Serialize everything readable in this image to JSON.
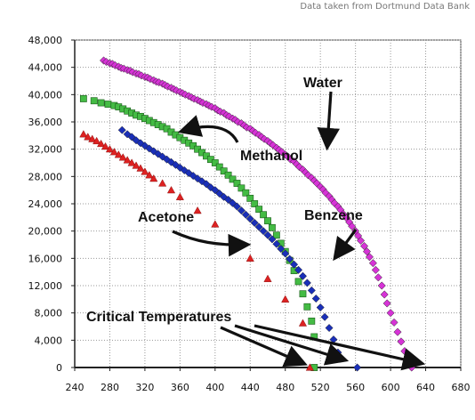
{
  "source_note": "Data taken from Dortmund Data Bank",
  "chart_data": {
    "type": "scatter",
    "title": "",
    "xlabel": "",
    "ylabel": "",
    "xlim": [
      240,
      680
    ],
    "ylim": [
      0,
      48000
    ],
    "x_ticks": [
      240,
      280,
      320,
      360,
      400,
      440,
      480,
      520,
      560,
      600,
      640,
      680
    ],
    "x_tick_labels": [
      "240",
      "280",
      "320",
      "360",
      "400",
      "440",
      "480",
      "520",
      "560",
      "600",
      "640",
      "680"
    ],
    "y_ticks": [
      0,
      4000,
      8000,
      12000,
      16000,
      20000,
      24000,
      28000,
      32000,
      36000,
      40000,
      44000,
      48000
    ],
    "y_tick_labels": [
      "0",
      "4,000",
      "8,000",
      "12,000",
      "16,000",
      "20,000",
      "24,000",
      "28,000",
      "32,000",
      "36,000",
      "40,000",
      "44,000",
      "48,000"
    ],
    "grid": true,
    "legend": "none",
    "series": [
      {
        "name": "Water",
        "marker": "diamond",
        "color": "#d633d6",
        "points": [
          [
            273,
            45000
          ],
          [
            276,
            44800
          ],
          [
            280,
            44600
          ],
          [
            283,
            44500
          ],
          [
            286,
            44300
          ],
          [
            290,
            44100
          ],
          [
            293,
            43900
          ],
          [
            296,
            43800
          ],
          [
            300,
            43600
          ],
          [
            303,
            43500
          ],
          [
            306,
            43300
          ],
          [
            310,
            43100
          ],
          [
            313,
            43000
          ],
          [
            316,
            42800
          ],
          [
            320,
            42600
          ],
          [
            323,
            42500
          ],
          [
            326,
            42300
          ],
          [
            330,
            42100
          ],
          [
            333,
            41900
          ],
          [
            336,
            41800
          ],
          [
            340,
            41600
          ],
          [
            343,
            41400
          ],
          [
            346,
            41200
          ],
          [
            350,
            41000
          ],
          [
            353,
            40800
          ],
          [
            356,
            40600
          ],
          [
            360,
            40400
          ],
          [
            363,
            40200
          ],
          [
            366,
            40000
          ],
          [
            370,
            39800
          ],
          [
            373,
            39600
          ],
          [
            376,
            39400
          ],
          [
            380,
            39200
          ],
          [
            383,
            39000
          ],
          [
            386,
            38800
          ],
          [
            390,
            38600
          ],
          [
            393,
            38400
          ],
          [
            396,
            38200
          ],
          [
            400,
            38000
          ],
          [
            403,
            37700
          ],
          [
            406,
            37500
          ],
          [
            410,
            37300
          ],
          [
            413,
            37000
          ],
          [
            416,
            36800
          ],
          [
            420,
            36500
          ],
          [
            423,
            36300
          ],
          [
            426,
            36000
          ],
          [
            430,
            35800
          ],
          [
            433,
            35500
          ],
          [
            436,
            35200
          ],
          [
            440,
            35000
          ],
          [
            443,
            34700
          ],
          [
            446,
            34400
          ],
          [
            450,
            34100
          ],
          [
            453,
            33800
          ],
          [
            456,
            33500
          ],
          [
            460,
            33200
          ],
          [
            463,
            32900
          ],
          [
            466,
            32600
          ],
          [
            470,
            32200
          ],
          [
            473,
            31900
          ],
          [
            476,
            31600
          ],
          [
            480,
            31200
          ],
          [
            483,
            30900
          ],
          [
            486,
            30500
          ],
          [
            490,
            30200
          ],
          [
            493,
            29800
          ],
          [
            496,
            29400
          ],
          [
            500,
            29000
          ],
          [
            503,
            28600
          ],
          [
            506,
            28200
          ],
          [
            510,
            27800
          ],
          [
            513,
            27400
          ],
          [
            516,
            27000
          ],
          [
            520,
            26500
          ],
          [
            523,
            26100
          ],
          [
            526,
            25600
          ],
          [
            530,
            25100
          ],
          [
            533,
            24600
          ],
          [
            536,
            24100
          ],
          [
            540,
            23600
          ],
          [
            543,
            23100
          ],
          [
            546,
            22500
          ],
          [
            550,
            21900
          ],
          [
            553,
            21300
          ],
          [
            556,
            20700
          ],
          [
            560,
            20000
          ],
          [
            563,
            19300
          ],
          [
            566,
            18600
          ],
          [
            570,
            17800
          ],
          [
            573,
            17000
          ],
          [
            576,
            16200
          ],
          [
            580,
            15300
          ],
          [
            583,
            14300
          ],
          [
            586,
            13200
          ],
          [
            590,
            12000
          ],
          [
            593,
            10700
          ],
          [
            596,
            9400
          ],
          [
            600,
            8000
          ],
          [
            604,
            6600
          ],
          [
            608,
            5200
          ],
          [
            612,
            3800
          ],
          [
            616,
            2400
          ],
          [
            620,
            1200
          ],
          [
            624,
            0
          ]
        ]
      },
      {
        "name": "Methanol",
        "marker": "square",
        "color": "#44bb44",
        "points": [
          [
            250,
            39400
          ],
          [
            262,
            39100
          ],
          [
            270,
            38800
          ],
          [
            278,
            38600
          ],
          [
            285,
            38400
          ],
          [
            290,
            38200
          ],
          [
            295,
            37900
          ],
          [
            300,
            37600
          ],
          [
            305,
            37300
          ],
          [
            310,
            37000
          ],
          [
            315,
            36800
          ],
          [
            320,
            36500
          ],
          [
            325,
            36200
          ],
          [
            330,
            35900
          ],
          [
            335,
            35600
          ],
          [
            340,
            35300
          ],
          [
            345,
            35000
          ],
          [
            350,
            34500
          ],
          [
            355,
            34100
          ],
          [
            360,
            33700
          ],
          [
            365,
            33300
          ],
          [
            370,
            32900
          ],
          [
            375,
            32500
          ],
          [
            380,
            32000
          ],
          [
            385,
            31500
          ],
          [
            390,
            31000
          ],
          [
            395,
            30500
          ],
          [
            400,
            30000
          ],
          [
            405,
            29400
          ],
          [
            410,
            28800
          ],
          [
            415,
            28200
          ],
          [
            420,
            27600
          ],
          [
            425,
            27000
          ],
          [
            430,
            26300
          ],
          [
            435,
            25600
          ],
          [
            440,
            24800
          ],
          [
            445,
            24000
          ],
          [
            450,
            23200
          ],
          [
            455,
            22400
          ],
          [
            460,
            21500
          ],
          [
            465,
            20500
          ],
          [
            470,
            19400
          ],
          [
            475,
            18200
          ],
          [
            480,
            17000
          ],
          [
            485,
            15700
          ],
          [
            490,
            14200
          ],
          [
            495,
            12600
          ],
          [
            500,
            10800
          ],
          [
            505,
            8900
          ],
          [
            510,
            6800
          ],
          [
            513,
            4500
          ],
          [
            513,
            0
          ]
        ]
      },
      {
        "name": "Benzene",
        "marker": "diamond",
        "color": "#1a2fb8",
        "points": [
          [
            294,
            34800
          ],
          [
            300,
            34200
          ],
          [
            305,
            33800
          ],
          [
            310,
            33300
          ],
          [
            315,
            32900
          ],
          [
            320,
            32500
          ],
          [
            325,
            32100
          ],
          [
            330,
            31700
          ],
          [
            335,
            31300
          ],
          [
            340,
            30900
          ],
          [
            345,
            30500
          ],
          [
            350,
            30100
          ],
          [
            355,
            29700
          ],
          [
            360,
            29300
          ],
          [
            365,
            28900
          ],
          [
            370,
            28500
          ],
          [
            375,
            28100
          ],
          [
            380,
            27700
          ],
          [
            385,
            27300
          ],
          [
            390,
            26900
          ],
          [
            395,
            26400
          ],
          [
            400,
            26000
          ],
          [
            405,
            25500
          ],
          [
            410,
            25000
          ],
          [
            415,
            24600
          ],
          [
            420,
            24100
          ],
          [
            425,
            23600
          ],
          [
            430,
            23000
          ],
          [
            435,
            22400
          ],
          [
            440,
            21800
          ],
          [
            445,
            21200
          ],
          [
            450,
            20600
          ],
          [
            455,
            20000
          ],
          [
            460,
            19400
          ],
          [
            465,
            18800
          ],
          [
            470,
            18100
          ],
          [
            475,
            17400
          ],
          [
            480,
            16700
          ],
          [
            485,
            15900
          ],
          [
            490,
            15100
          ],
          [
            495,
            14300
          ],
          [
            500,
            13400
          ],
          [
            505,
            12400
          ],
          [
            510,
            11300
          ],
          [
            515,
            10100
          ],
          [
            520,
            8800
          ],
          [
            525,
            7400
          ],
          [
            530,
            5800
          ],
          [
            535,
            4100
          ],
          [
            540,
            2200
          ],
          [
            562,
            0
          ]
        ]
      },
      {
        "name": "Acetone",
        "marker": "triangle",
        "color": "#dd2222",
        "points": [
          [
            250,
            34200
          ],
          [
            255,
            33800
          ],
          [
            260,
            33500
          ],
          [
            265,
            33200
          ],
          [
            270,
            32800
          ],
          [
            275,
            32400
          ],
          [
            280,
            32000
          ],
          [
            285,
            31600
          ],
          [
            290,
            31200
          ],
          [
            295,
            30800
          ],
          [
            300,
            30400
          ],
          [
            305,
            30000
          ],
          [
            310,
            29600
          ],
          [
            315,
            29200
          ],
          [
            320,
            28700
          ],
          [
            325,
            28200
          ],
          [
            330,
            27700
          ],
          [
            340,
            27000
          ],
          [
            350,
            26000
          ],
          [
            360,
            25000
          ],
          [
            380,
            23000
          ],
          [
            400,
            21000
          ],
          [
            420,
            18500
          ],
          [
            440,
            16000
          ],
          [
            460,
            13000
          ],
          [
            480,
            10000
          ],
          [
            500,
            6500
          ],
          [
            508,
            0
          ]
        ]
      }
    ],
    "annotations": [
      {
        "text": "Water"
      },
      {
        "text": "Methanol"
      },
      {
        "text": "Benzene"
      },
      {
        "text": "Acetone"
      },
      {
        "text": "Critical Temperatures"
      }
    ]
  }
}
